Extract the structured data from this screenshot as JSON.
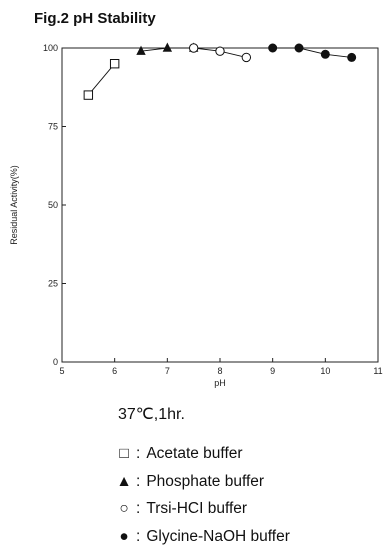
{
  "figure": {
    "title": "Fig.2 pH Stability",
    "condition": "37℃,1hr."
  },
  "legend": [
    {
      "symbol": "□",
      "separator": ":",
      "label": "Acetate buffer",
      "icon": "open-square"
    },
    {
      "symbol": "▲",
      "separator": ":",
      "label": "Phosphate buffer",
      "icon": "filled-triangle"
    },
    {
      "symbol": "○",
      "separator": ":",
      "label": "Trsi-HCI buffer",
      "icon": "open-circle"
    },
    {
      "symbol": "●",
      "separator": ":",
      "label": "Glycine-NaOH buffer",
      "icon": "filled-circle"
    }
  ],
  "chart_data": {
    "type": "line",
    "title": "Fig.2 pH Stability",
    "xlabel": "pH",
    "ylabel": "Residual Activity(%)",
    "xlim": [
      5,
      11
    ],
    "ylim": [
      0,
      100
    ],
    "xticks": [
      5,
      6,
      7,
      8,
      9,
      10,
      11
    ],
    "yticks": [
      0,
      25,
      50,
      75,
      100
    ],
    "grid": false,
    "series": [
      {
        "name": "Acetate buffer",
        "marker": "open-square",
        "x": [
          5.5,
          6.0
        ],
        "y": [
          85,
          95
        ]
      },
      {
        "name": "Phosphate buffer",
        "marker": "filled-triangle",
        "x": [
          6.5,
          7.0,
          7.5
        ],
        "y": [
          99,
          100,
          100
        ]
      },
      {
        "name": "Trsi-HCI buffer",
        "marker": "open-circle",
        "x": [
          7.5,
          8.0,
          8.5
        ],
        "y": [
          100,
          99,
          97
        ]
      },
      {
        "name": "Glycine-NaOH buffer",
        "marker": "filled-circle",
        "x": [
          9.0,
          9.5,
          10.0,
          10.5
        ],
        "y": [
          100,
          100,
          98,
          97
        ]
      }
    ]
  }
}
